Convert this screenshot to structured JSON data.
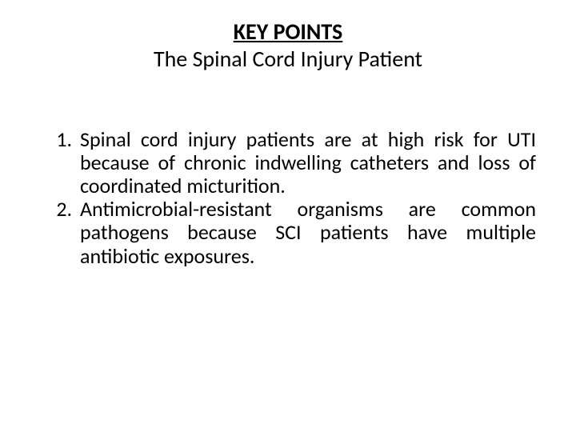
{
  "slide": {
    "background_color": "#ffffff",
    "text_color": "#000000",
    "font_family": "Calibri",
    "title": {
      "main": "KEY POINTS",
      "sub": "The Spinal Cord Injury Patient",
      "main_fontsize": 28,
      "main_fontweight": 700,
      "main_underline": true,
      "sub_fontsize": 28,
      "sub_fontweight": 400,
      "align": "center"
    },
    "body": {
      "list_type": "decimal",
      "fontsize": 26,
      "text_align": "justify",
      "line_height": 1.12,
      "items": [
        "Spinal cord injury patients are at high risk for UTI because of chronic indwelling catheters and loss of coordinated micturition.",
        "Antimicrobial-resistant organisms are common pathogens because SCI patients have multiple antibiotic exposures."
      ]
    }
  }
}
